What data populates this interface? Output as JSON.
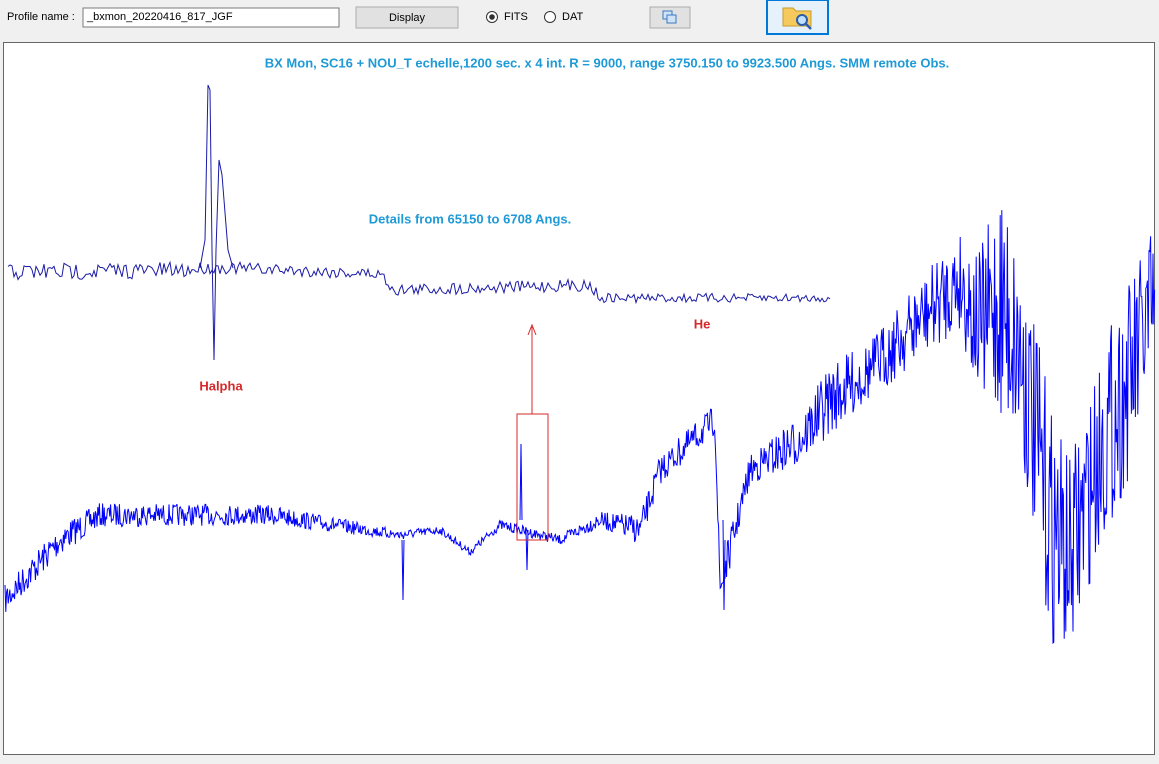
{
  "toolbar": {
    "profile_label": "Profile name :",
    "profile_value": "_bxmon_20220416_817_JGF",
    "display_button": "Display",
    "radio_options": [
      "FITS",
      "DAT"
    ]
  },
  "plot": {
    "title": "BX Mon,  SC16 + NOU_T echelle,1200 sec. x 4 int. R = 9000, range 3750.150 to 9923.500 Angs.  SMM remote Obs.",
    "detail_label": "Details from 65150 to 6708 Angs.",
    "annotations": [
      "Halpha",
      "He"
    ]
  }
}
